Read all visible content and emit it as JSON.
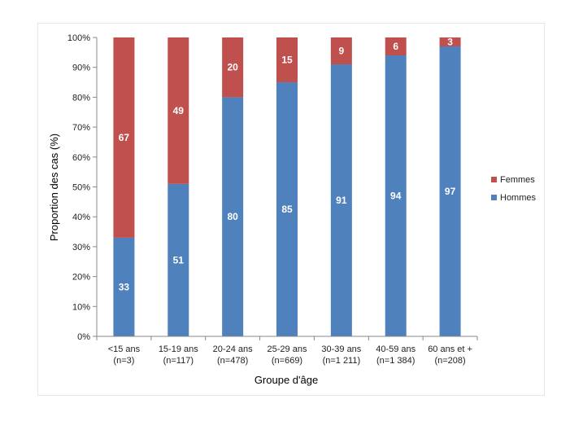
{
  "chart_data": {
    "type": "bar",
    "stacked": true,
    "title": "",
    "xlabel": "Groupe d'âge",
    "ylabel": "Proportion des cas (%)",
    "ylim": [
      0,
      100
    ],
    "yticks": [
      "0%",
      "10%",
      "20%",
      "30%",
      "40%",
      "50%",
      "60%",
      "70%",
      "80%",
      "90%",
      "100%"
    ],
    "categories": [
      [
        "<15 ans",
        "(n=3)"
      ],
      [
        "15-19 ans",
        "(n=117)"
      ],
      [
        "20-24 ans",
        "(n=478)"
      ],
      [
        "25-29 ans",
        "(n=669)"
      ],
      [
        "30-39 ans",
        "(n=1 211)"
      ],
      [
        "40-59 ans",
        "(n=1 384)"
      ],
      [
        "60 ans et +",
        "(n=208)"
      ]
    ],
    "series": [
      {
        "name": "Hommes",
        "color": "#4f81bd",
        "values": [
          33,
          51,
          80,
          85,
          91,
          94,
          97
        ]
      },
      {
        "name": "Femmes",
        "color": "#c0504d",
        "values": [
          67,
          49,
          20,
          15,
          9,
          6,
          3
        ]
      }
    ],
    "legend": [
      "Femmes",
      "Hommes"
    ],
    "legend_position": "right",
    "grid": false
  }
}
